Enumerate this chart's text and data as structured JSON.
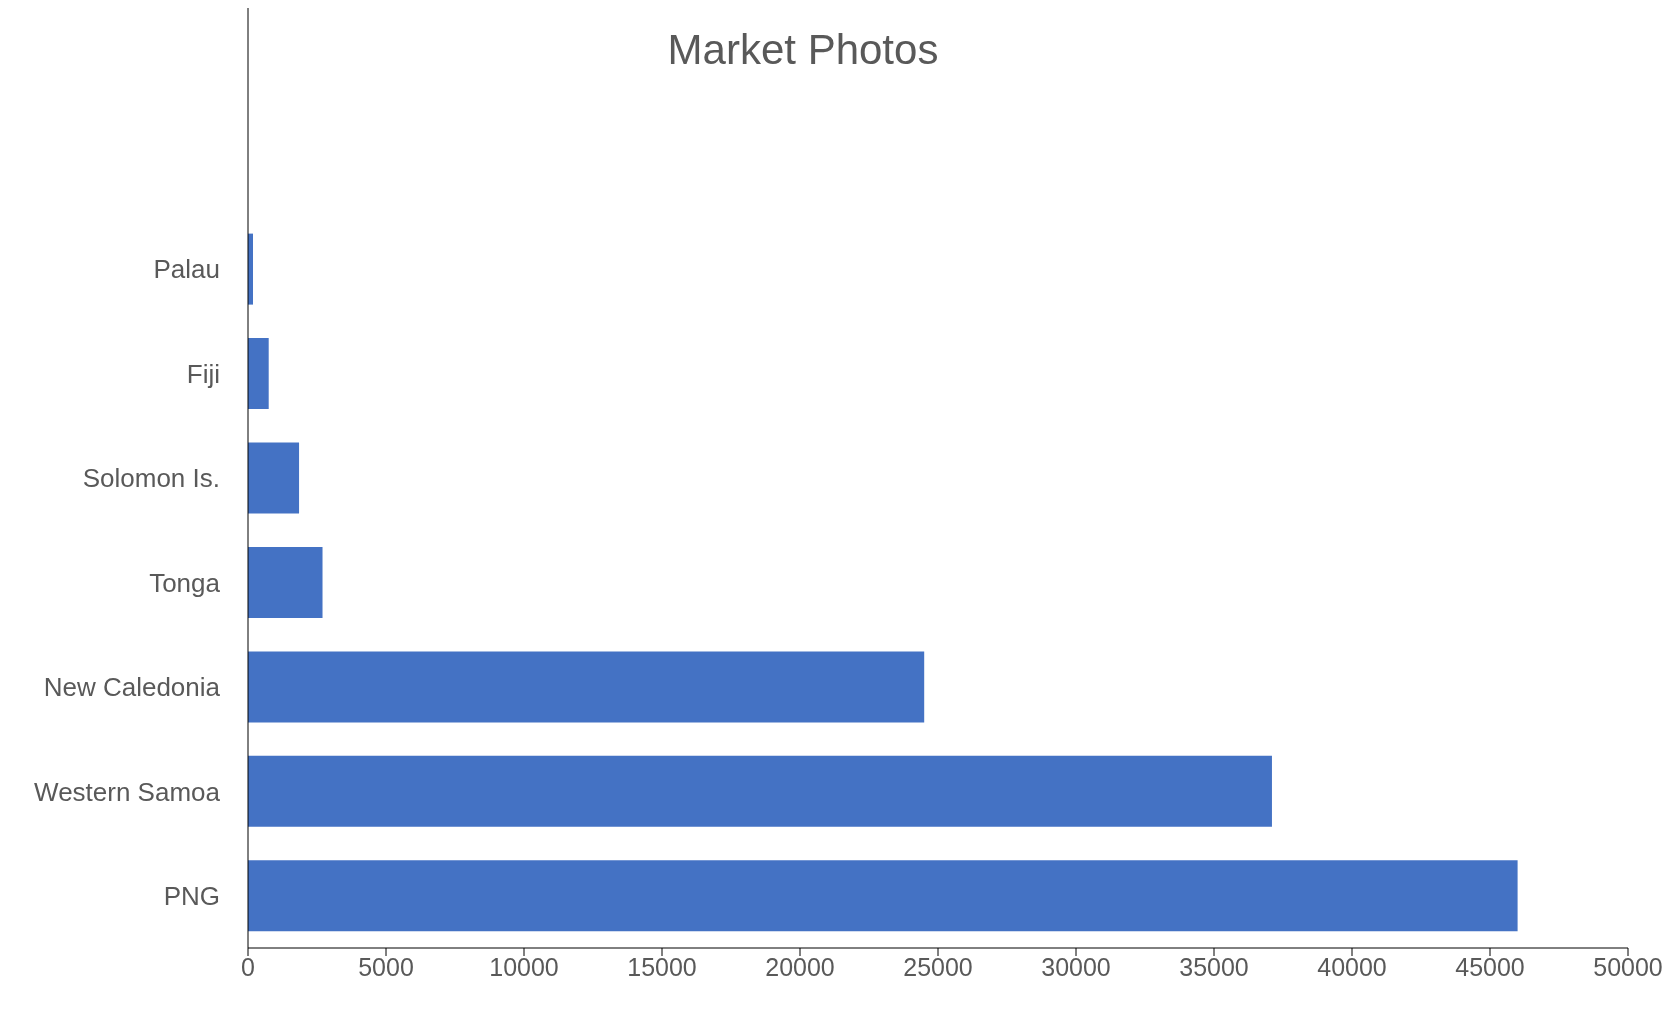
{
  "chart_data": {
    "type": "bar",
    "orientation": "horizontal",
    "title": "Market Photos",
    "categories": [
      null,
      null,
      "Palau",
      "Fiji",
      "Solomon Is.",
      "Tonga",
      "New Caledonia",
      "Western Samoa",
      "PNG"
    ],
    "values": [
      null,
      null,
      80,
      750,
      1850,
      2700,
      24500,
      37100,
      46000
    ],
    "color": "#4472c4",
    "xlim": [
      0,
      50000
    ],
    "xticks": [
      0,
      5000,
      10000,
      15000,
      20000,
      25000,
      30000,
      35000,
      40000,
      45000,
      50000
    ],
    "grid": false,
    "legend": false
  }
}
